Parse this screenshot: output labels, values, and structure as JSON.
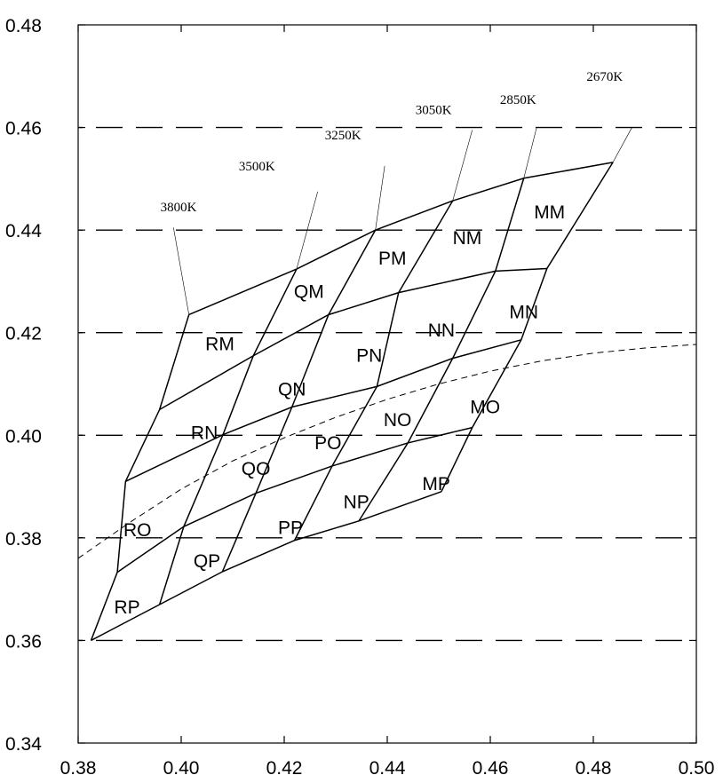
{
  "chart_data": {
    "type": "line",
    "title": "",
    "xlabel": "",
    "ylabel": "",
    "xlim": [
      0.38,
      0.5
    ],
    "ylim": [
      0.34,
      0.48
    ],
    "x_ticks": [
      "0.38",
      "0.40",
      "0.42",
      "0.44",
      "0.46",
      "0.48",
      "0.50"
    ],
    "y_ticks": [
      "0.34",
      "0.36",
      "0.38",
      "0.40",
      "0.42",
      "0.44",
      "0.46",
      "0.48"
    ],
    "dashed_gridlines_y": [
      0.36,
      0.38,
      0.4,
      0.42,
      0.44,
      0.46
    ],
    "grid_vertices": {
      "columns": [
        "R",
        "Q",
        "P",
        "N",
        "M"
      ],
      "rows": [
        "M",
        "N",
        "O",
        "P"
      ],
      "boundary_lines": [
        {
          "label": "3800K",
          "points": [
            [
              0.4015,
              0.4235
            ],
            [
              0.3958,
              0.405
            ],
            [
              0.3892,
              0.391
            ],
            [
              0.3876,
              0.3733
            ],
            [
              0.3825,
              0.36
            ]
          ]
        },
        {
          "label": "3500K",
          "points": [
            [
              0.4224,
              0.4324
            ],
            [
              0.414,
              0.4155
            ],
            [
              0.4081,
              0.4001
            ],
            [
              0.4005,
              0.3822
            ],
            [
              0.3958,
              0.367
            ]
          ]
        },
        {
          "label": "3250K",
          "points": [
            [
              0.4377,
              0.44
            ],
            [
              0.4286,
              0.4235
            ],
            [
              0.4215,
              0.4055
            ],
            [
              0.4145,
              0.3887
            ],
            [
              0.408,
              0.3734
            ]
          ]
        },
        {
          "label": "3050K",
          "points": [
            [
              0.4527,
              0.4457
            ],
            [
              0.4422,
              0.4278
            ],
            [
              0.438,
              0.4095
            ],
            [
              0.4293,
              0.394
            ],
            [
              0.422,
              0.3795
            ]
          ]
        },
        {
          "label": "2850K",
          "points": [
            [
              0.4665,
              0.4501
            ],
            [
              0.461,
              0.432
            ],
            [
              0.4527,
              0.415
            ],
            [
              0.444,
              0.3985
            ],
            [
              0.4345,
              0.3833
            ]
          ]
        },
        {
          "label": "2670K",
          "points": [
            [
              0.4838,
              0.4532
            ],
            [
              0.471,
              0.4325
            ],
            [
              0.466,
              0.4186
            ],
            [
              0.4565,
              0.4015
            ],
            [
              0.4505,
              0.389
            ]
          ]
        }
      ]
    },
    "cct_labels": [
      {
        "text": "3800K",
        "x": 0.3995,
        "y": 0.4445
      },
      {
        "text": "3500K",
        "x": 0.4147,
        "y": 0.4525
      },
      {
        "text": "3250K",
        "x": 0.4314,
        "y": 0.4585
      },
      {
        "text": "3050K",
        "x": 0.449,
        "y": 0.4635
      },
      {
        "text": "2850K",
        "x": 0.4654,
        "y": 0.4655
      },
      {
        "text": "2670K",
        "x": 0.4822,
        "y": 0.47
      }
    ],
    "label_leaders": [
      {
        "text": "3800K",
        "from": [
          0.3985,
          0.4405
        ],
        "to": [
          0.4015,
          0.4235
        ]
      },
      {
        "text": "3500K",
        "from": [
          0.4265,
          0.4475
        ],
        "to": [
          0.4224,
          0.4324
        ]
      },
      {
        "text": "3250K",
        "from": [
          0.4395,
          0.4525
        ],
        "to": [
          0.4377,
          0.44
        ]
      },
      {
        "text": "3050K",
        "from": [
          0.4565,
          0.4595
        ],
        "to": [
          0.4527,
          0.4457
        ]
      },
      {
        "text": "2850K",
        "from": [
          0.469,
          0.46
        ],
        "to": [
          0.4665,
          0.4501
        ]
      },
      {
        "text": "2670K",
        "from": [
          0.4875,
          0.46
        ],
        "to": [
          0.4838,
          0.4532
        ]
      }
    ],
    "bin_labels": [
      {
        "text": "RM",
        "x": 0.4075,
        "y": 0.4178
      },
      {
        "text": "RN",
        "x": 0.4045,
        "y": 0.4005
      },
      {
        "text": "RO",
        "x": 0.3915,
        "y": 0.3815
      },
      {
        "text": "RP",
        "x": 0.3895,
        "y": 0.3665
      },
      {
        "text": "QM",
        "x": 0.4248,
        "y": 0.428
      },
      {
        "text": "QN",
        "x": 0.4215,
        "y": 0.409
      },
      {
        "text": "QO",
        "x": 0.4145,
        "y": 0.3935
      },
      {
        "text": "QP",
        "x": 0.405,
        "y": 0.3755
      },
      {
        "text": "PM",
        "x": 0.441,
        "y": 0.4345
      },
      {
        "text": "PN",
        "x": 0.4365,
        "y": 0.4155
      },
      {
        "text": "PO",
        "x": 0.4285,
        "y": 0.3985
      },
      {
        "text": "PP",
        "x": 0.4212,
        "y": 0.382
      },
      {
        "text": "NM",
        "x": 0.4555,
        "y": 0.4385
      },
      {
        "text": "NN",
        "x": 0.4505,
        "y": 0.4205
      },
      {
        "text": "NO",
        "x": 0.442,
        "y": 0.403
      },
      {
        "text": "NP",
        "x": 0.434,
        "y": 0.387
      },
      {
        "text": "MM",
        "x": 0.4715,
        "y": 0.4435
      },
      {
        "text": "MN",
        "x": 0.4665,
        "y": 0.424
      },
      {
        "text": "MO",
        "x": 0.459,
        "y": 0.4055
      },
      {
        "text": "MP",
        "x": 0.4495,
        "y": 0.3905
      }
    ],
    "locus_curve": {
      "style": "dashed",
      "points": [
        [
          0.38,
          0.376
        ],
        [
          0.39,
          0.383
        ],
        [
          0.4,
          0.3895
        ],
        [
          0.41,
          0.395
        ],
        [
          0.42,
          0.3995
        ],
        [
          0.43,
          0.4035
        ],
        [
          0.44,
          0.407
        ],
        [
          0.45,
          0.41
        ],
        [
          0.46,
          0.4125
        ],
        [
          0.47,
          0.4145
        ],
        [
          0.48,
          0.416
        ],
        [
          0.49,
          0.417
        ],
        [
          0.5,
          0.4177
        ]
      ]
    }
  }
}
